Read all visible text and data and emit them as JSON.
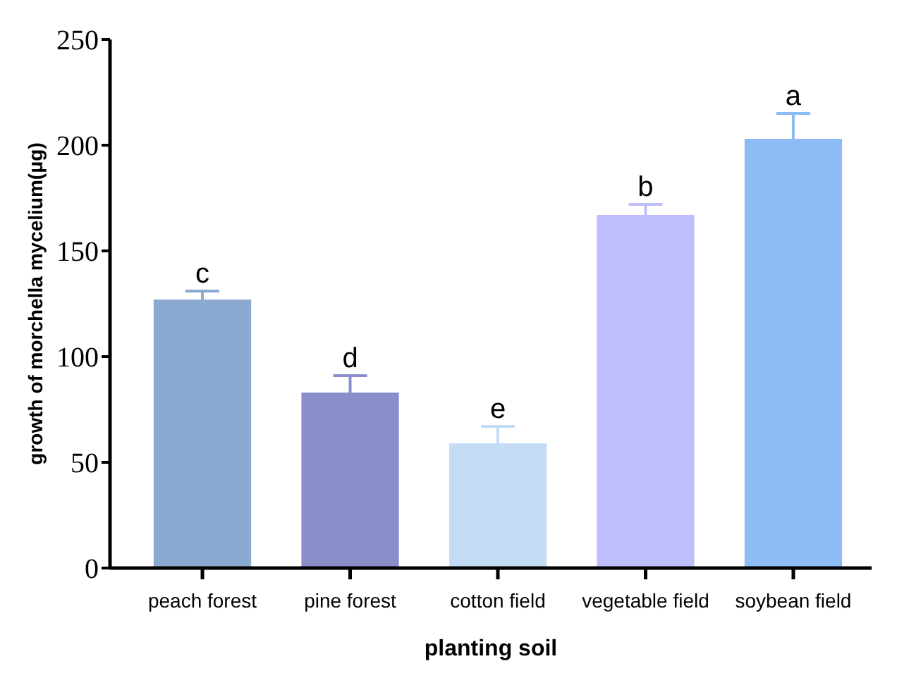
{
  "chart_data": {
    "type": "bar",
    "xlabel": "planting soil",
    "ylabel": "growth of morchella mycelium(μg)",
    "categories": [
      "peach forest",
      "pine forest",
      "cotton field",
      "vegetable field",
      "soybean field"
    ],
    "values": [
      127,
      83,
      59,
      167,
      203
    ],
    "errors": [
      4,
      8,
      8,
      5,
      12
    ],
    "colors": [
      "#8aaad2",
      "#8a8ecb",
      "#c5dcf5",
      "#bfbefc",
      "#8dbbf4"
    ],
    "ylim": [
      0,
      250
    ],
    "yticks": [
      0,
      50,
      100,
      150,
      200,
      250
    ],
    "grid": false,
    "annotations": [
      {
        "text": "c",
        "x": "peach forest",
        "y": 131
      },
      {
        "text": "d",
        "x": "pine forest",
        "y": 91
      },
      {
        "text": "e",
        "x": "cotton field",
        "y": 67
      },
      {
        "text": "b",
        "x": "vegetable field",
        "y": 172
      },
      {
        "text": "a",
        "x": "soybean field",
        "y": 215
      }
    ]
  }
}
